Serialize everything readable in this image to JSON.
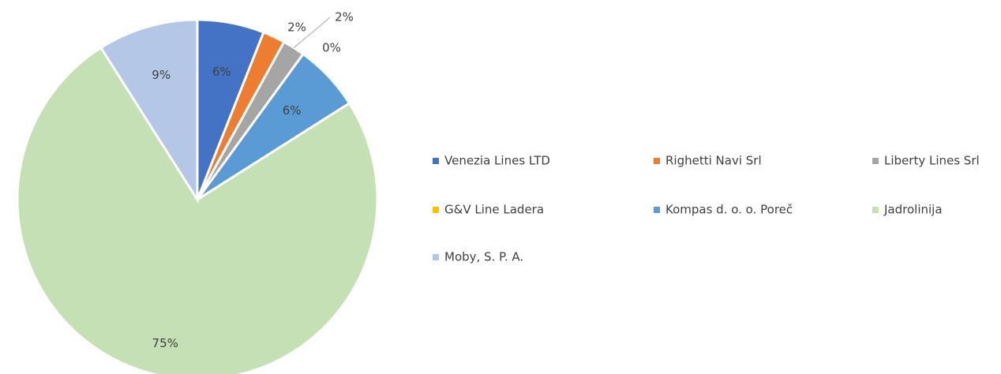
{
  "chart_data": {
    "type": "pie",
    "categories": [
      "Venezia Lines LTD",
      "Righetti Navi Srl",
      "Liberty Lines Srl",
      "G&V Line Ladera",
      "Kompas d. o. o. Poreč",
      "Jadrolinija",
      "Moby, S. P. A."
    ],
    "values": [
      6,
      2,
      2,
      0,
      6,
      75,
      9
    ],
    "value_labels": [
      "6%",
      "2%",
      "2%",
      "0%",
      "6%",
      "75%",
      "9%"
    ],
    "colors": [
      "#4472c4",
      "#ed7d31",
      "#a5a5a5",
      "#ffc000",
      "#5b9bd5",
      "#c5e0b4",
      "#b4c7e7"
    ],
    "legend": "right"
  }
}
